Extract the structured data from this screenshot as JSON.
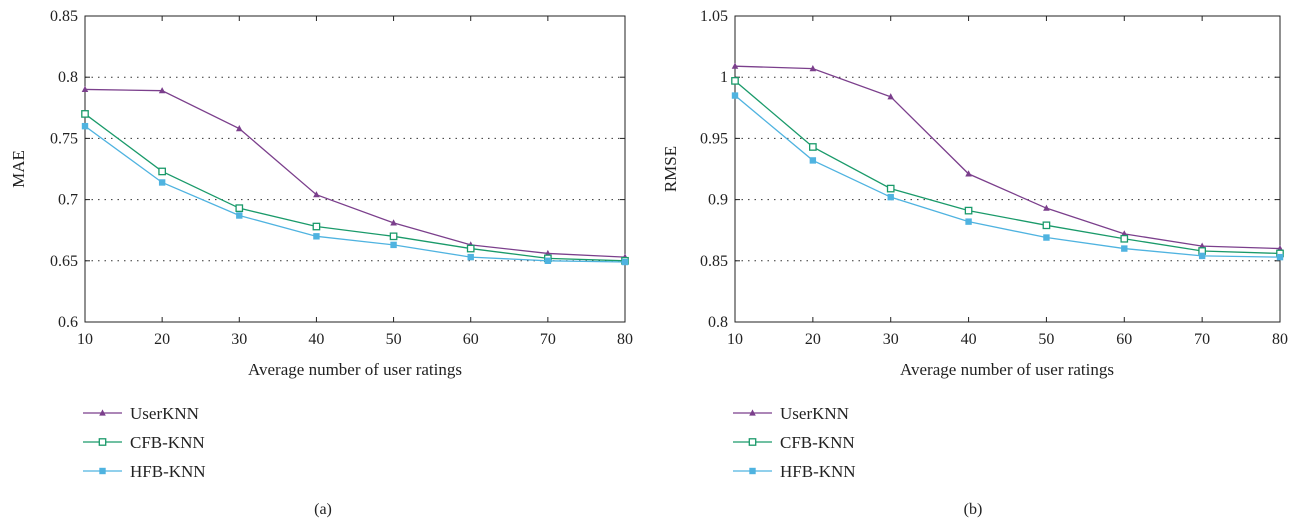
{
  "chart_data": [
    {
      "type": "line",
      "caption": "(a)",
      "xlabel": "Average number of user ratings",
      "ylabel": "MAE",
      "x": [
        10,
        20,
        30,
        40,
        50,
        60,
        70,
        80
      ],
      "xlim": [
        10,
        80
      ],
      "ylim": [
        0.6,
        0.85
      ],
      "x_ticks": [
        "10",
        "20",
        "30",
        "40",
        "50",
        "60",
        "70",
        "80"
      ],
      "y_ticks": [
        "0.6",
        "0.65",
        "0.7",
        "0.75",
        "0.8",
        "0.85"
      ],
      "y_tick_values": [
        0.6,
        0.65,
        0.7,
        0.75,
        0.8,
        0.85
      ],
      "grid": "dotted horizontal",
      "legend_position": "below",
      "series": [
        {
          "name": "UserKNN",
          "color": "#7b3f8c",
          "marker": "triangle",
          "values": [
            0.79,
            0.789,
            0.758,
            0.704,
            0.681,
            0.663,
            0.656,
            0.653
          ]
        },
        {
          "name": "CFB-KNN",
          "color": "#1a9a6a",
          "marker": "open-square",
          "values": [
            0.77,
            0.723,
            0.693,
            0.678,
            0.67,
            0.66,
            0.652,
            0.65
          ]
        },
        {
          "name": "HFB-KNN",
          "color": "#4fb3e0",
          "marker": "filled-square",
          "values": [
            0.76,
            0.714,
            0.687,
            0.67,
            0.663,
            0.653,
            0.65,
            0.649
          ]
        }
      ]
    },
    {
      "type": "line",
      "caption": "(b)",
      "xlabel": "Average number of user ratings",
      "ylabel": "RMSE",
      "x": [
        10,
        20,
        30,
        40,
        50,
        60,
        70,
        80
      ],
      "xlim": [
        10,
        80
      ],
      "ylim": [
        0.8,
        1.05
      ],
      "x_ticks": [
        "10",
        "20",
        "30",
        "40",
        "50",
        "60",
        "70",
        "80"
      ],
      "y_ticks": [
        "0.8",
        "0.85",
        "0.9",
        "0.95",
        "1",
        "1.05"
      ],
      "y_tick_values": [
        0.8,
        0.85,
        0.9,
        0.95,
        1.0,
        1.05
      ],
      "grid": "dotted horizontal",
      "legend_position": "below",
      "series": [
        {
          "name": "UserKNN",
          "color": "#7b3f8c",
          "marker": "triangle",
          "values": [
            1.009,
            1.007,
            0.984,
            0.921,
            0.893,
            0.872,
            0.862,
            0.86
          ]
        },
        {
          "name": "CFB-KNN",
          "color": "#1a9a6a",
          "marker": "open-square",
          "values": [
            0.997,
            0.943,
            0.909,
            0.891,
            0.879,
            0.868,
            0.858,
            0.856
          ]
        },
        {
          "name": "HFB-KNN",
          "color": "#4fb3e0",
          "marker": "filled-square",
          "values": [
            0.985,
            0.932,
            0.902,
            0.882,
            0.869,
            0.86,
            0.854,
            0.853
          ]
        }
      ]
    }
  ]
}
